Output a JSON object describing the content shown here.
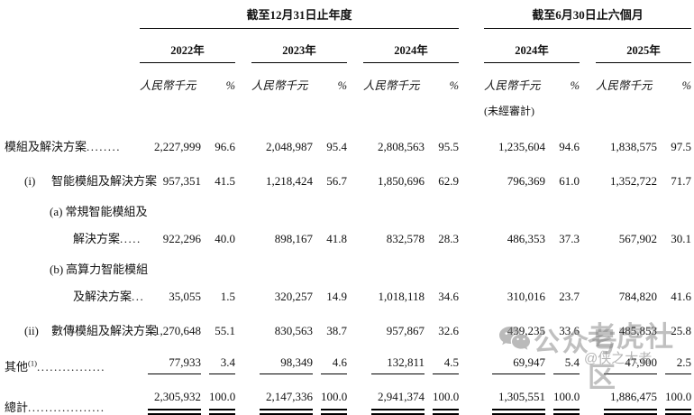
{
  "header": {
    "annual_title": "截至12月31日止年度",
    "interim_title": "截至6月30日止六個月",
    "years": [
      "2022年",
      "2023年",
      "2024年",
      "2024年",
      "2025年"
    ],
    "amount_label": "人民幣千元",
    "pct_label": "%",
    "unaudited_note": "(未經審計)"
  },
  "table": {
    "rows": [
      {
        "prefix": "",
        "label": "模組及解決方案",
        "sup": "",
        "leader": "........",
        "bold": true,
        "indent": 0,
        "rule": "none",
        "values": [
          [
            "2,227,999",
            "96.6"
          ],
          [
            "2,048,987",
            "95.4"
          ],
          [
            "2,808,563",
            "95.5"
          ],
          [
            "1,235,604",
            "94.6"
          ],
          [
            "1,838,575",
            "97.5"
          ]
        ]
      },
      {
        "prefix": "(i)",
        "label": "智能模組及解決方案",
        "sup": "",
        "leader": "",
        "bold": false,
        "indent": 1,
        "rule": "none",
        "values": [
          [
            "957,351",
            "41.5"
          ],
          [
            "1,218,424",
            "56.7"
          ],
          [
            "1,850,696",
            "62.9"
          ],
          [
            "796,369",
            "61.0"
          ],
          [
            "1,352,722",
            "71.7"
          ]
        ]
      },
      {
        "prefix": "(a)",
        "label": "常規智能模組及",
        "sup": "",
        "leader": "",
        "bold": false,
        "indent": 2,
        "rule": "none",
        "values": null
      },
      {
        "prefix": "",
        "label": "解決方案",
        "sup": "",
        "leader": ".....",
        "bold": false,
        "indent": 3,
        "rule": "none",
        "values": [
          [
            "922,296",
            "40.0"
          ],
          [
            "898,167",
            "41.8"
          ],
          [
            "832,578",
            "28.3"
          ],
          [
            "486,353",
            "37.3"
          ],
          [
            "567,902",
            "30.1"
          ]
        ]
      },
      {
        "prefix": "(b)",
        "label": "高算力智能模組",
        "sup": "",
        "leader": "",
        "bold": false,
        "indent": 2,
        "rule": "none",
        "values": null
      },
      {
        "prefix": "",
        "label": "及解決方案",
        "sup": "",
        "leader": "...",
        "bold": false,
        "indent": 3,
        "rule": "none",
        "values": [
          [
            "35,055",
            "1.5"
          ],
          [
            "320,257",
            "14.9"
          ],
          [
            "1,018,118",
            "34.6"
          ],
          [
            "310,016",
            "23.7"
          ],
          [
            "784,820",
            "41.6"
          ]
        ]
      },
      {
        "prefix": "(ii)",
        "label": "數傳模組及解決方案",
        "sup": "",
        "leader": "",
        "bold": false,
        "indent": 1,
        "rule": "none",
        "values": [
          [
            "1,270,648",
            "55.1"
          ],
          [
            "830,563",
            "38.7"
          ],
          [
            "957,867",
            "32.6"
          ],
          [
            "439,235",
            "33.6"
          ],
          [
            "485,853",
            "25.8"
          ]
        ]
      },
      {
        "prefix": "",
        "label": "其他",
        "sup": "(1)",
        "leader": "................",
        "bold": true,
        "indent": 0,
        "rule": "single",
        "values": [
          [
            "77,933",
            "3.4"
          ],
          [
            "98,349",
            "4.6"
          ],
          [
            "132,811",
            "4.5"
          ],
          [
            "69,947",
            "5.4"
          ],
          [
            "47,900",
            "2.5"
          ]
        ]
      },
      {
        "prefix": "",
        "label": "總計",
        "sup": "",
        "leader": "..................",
        "bold": true,
        "indent": 0,
        "rule": "double",
        "values": [
          [
            "2,305,932",
            "100.0"
          ],
          [
            "2,147,336",
            "100.0"
          ],
          [
            "2,941,374",
            "100.0"
          ],
          [
            "1,305,551",
            "100.0"
          ],
          [
            "1,886,475",
            "100.0"
          ]
        ]
      }
    ]
  },
  "watermark": {
    "wechat_label": "公众号",
    "community": "老虎社区",
    "author": "@侠之大者"
  },
  "colors": {
    "text": "#111111",
    "rule": "#000000",
    "watermark_gray": "#8a8a8a"
  }
}
